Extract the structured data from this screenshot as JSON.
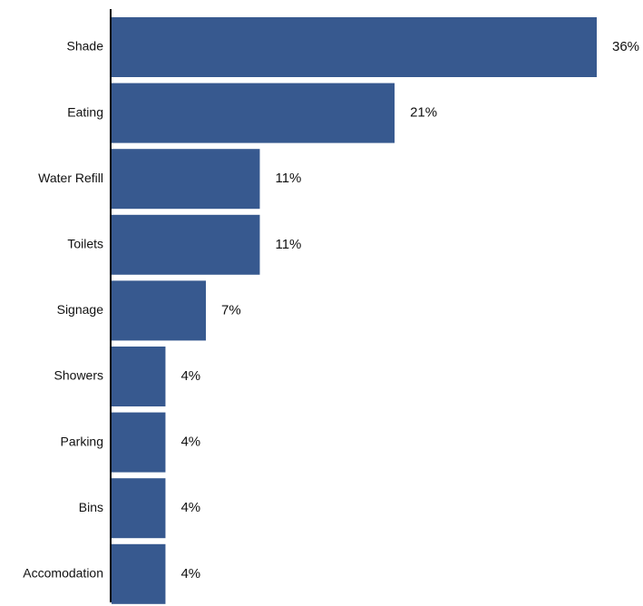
{
  "chart_data": {
    "type": "bar",
    "orientation": "horizontal",
    "categories": [
      "Shade",
      "Eating",
      "Water Refill",
      "Toilets",
      "Signage",
      "Showers",
      "Parking",
      "Bins",
      "Accomodation"
    ],
    "values": [
      36,
      21,
      11,
      11,
      7,
      4,
      4,
      4,
      4
    ],
    "value_labels": [
      "36%",
      "21%",
      "11%",
      "11%",
      "7%",
      "4%",
      "4%",
      "4%",
      "4%"
    ],
    "title": "",
    "xlabel": "",
    "ylabel": "",
    "xlim": [
      0,
      36
    ],
    "grid": false,
    "legend": "none",
    "bar_color": "#37598f"
  }
}
